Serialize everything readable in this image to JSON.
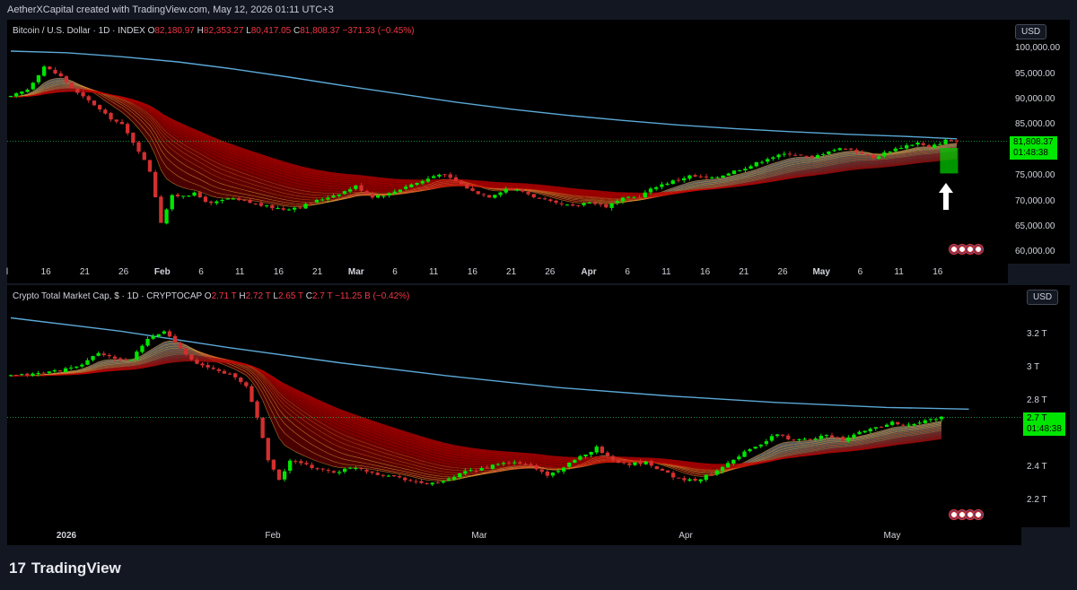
{
  "header": {
    "attribution": "AetherXCapital created with TradingView.com, May 12, 2026 01:11 UTC+3"
  },
  "footer": {
    "logo_mark": "17",
    "logo_text": "TradingView"
  },
  "colors": {
    "bull": "#00e600",
    "bear": "#d32f2f",
    "ribbon_red": "#b30000",
    "ribbon_gray": "#8a8a8a",
    "long_ma": "#5ba8d6",
    "price_tag": "#00e600",
    "background": "#000000"
  },
  "chart_data": [
    {
      "type": "candlestick",
      "legend": {
        "symbol": "Bitcoin / U.S. Dollar · 1D · INDEX",
        "open_key": "O",
        "open": "82,180.97",
        "high_key": "H",
        "high": "82,353.27",
        "low_key": "L",
        "low": "80,417.05",
        "close_key": "C",
        "close": "81,808.37",
        "change": "−371.33 (−0.45%)"
      },
      "currency": "USD",
      "last_price": "81,808.37",
      "countdown": "01:48:38",
      "y_ticks": [
        "100,000.00",
        "95,000.00",
        "90,000.00",
        "85,000.00",
        "75,000.00",
        "70,000.00",
        "65,000.00",
        "60,000.00"
      ],
      "ylim": [
        58500,
        102500
      ],
      "x_ticks": [
        "l",
        "16",
        "21",
        "26",
        "Feb",
        "6",
        "11",
        "16",
        "21",
        "Mar",
        "6",
        "11",
        "16",
        "21",
        "26",
        "Apr",
        "6",
        "11",
        "16",
        "21",
        "26",
        "May",
        "6",
        "11",
        "16"
      ],
      "long_ma": [
        [
          0,
          99500
        ],
        [
          10,
          99200
        ],
        [
          20,
          98400
        ],
        [
          30,
          97400
        ],
        [
          40,
          96000
        ],
        [
          50,
          94400
        ],
        [
          60,
          92700
        ],
        [
          70,
          91100
        ],
        [
          80,
          89500
        ],
        [
          90,
          88100
        ],
        [
          100,
          86900
        ],
        [
          110,
          85900
        ],
        [
          120,
          85000
        ],
        [
          130,
          84300
        ],
        [
          140,
          83700
        ],
        [
          150,
          83200
        ],
        [
          160,
          82800
        ],
        [
          170,
          82300
        ]
      ],
      "anchors": [
        [
          0,
          90500
        ],
        [
          3,
          92000
        ],
        [
          6,
          96500
        ],
        [
          9,
          94500
        ],
        [
          12,
          91200
        ],
        [
          15,
          89000
        ],
        [
          17,
          87000
        ],
        [
          20,
          85000
        ],
        [
          23,
          80000
        ],
        [
          25,
          76000
        ],
        [
          27,
          66000
        ],
        [
          29,
          71000
        ],
        [
          33,
          71500
        ],
        [
          36,
          69500
        ],
        [
          39,
          70500
        ],
        [
          42,
          70000
        ],
        [
          46,
          69000
        ],
        [
          49,
          68500
        ],
        [
          52,
          69000
        ],
        [
          56,
          70500
        ],
        [
          60,
          72000
        ],
        [
          62,
          73000
        ],
        [
          65,
          71000
        ],
        [
          68,
          71500
        ],
        [
          71,
          73000
        ],
        [
          74,
          74000
        ],
        [
          77,
          75500
        ],
        [
          80,
          74000
        ],
        [
          83,
          72000
        ],
        [
          86,
          71000
        ],
        [
          89,
          72500
        ],
        [
          92,
          72000
        ],
        [
          95,
          70500
        ],
        [
          98,
          69500
        ],
        [
          101,
          69000
        ],
        [
          104,
          70000
        ],
        [
          107,
          69000
        ],
        [
          110,
          70500
        ],
        [
          113,
          71000
        ],
        [
          116,
          73000
        ],
        [
          119,
          74000
        ],
        [
          122,
          75000
        ],
        [
          126,
          74500
        ],
        [
          130,
          76000
        ],
        [
          133,
          77000
        ],
        [
          136,
          78500
        ],
        [
          140,
          79500
        ],
        [
          144,
          78500
        ],
        [
          147,
          80000
        ],
        [
          150,
          80500
        ],
        [
          153,
          79500
        ],
        [
          155,
          78500
        ],
        [
          158,
          80000
        ],
        [
          161,
          81000
        ],
        [
          163,
          81500
        ],
        [
          165,
          80500
        ],
        [
          168,
          82000
        ],
        [
          170,
          81808
        ]
      ],
      "arrow_annotation": "up"
    },
    {
      "type": "candlestick",
      "legend": {
        "symbol": "Crypto Total Market Cap, $ · 1D · CRYPTOCAP",
        "open_key": "O",
        "open": "2.71 T",
        "high_key": "H",
        "high": "2.72 T",
        "low_key": "L",
        "low": "2.65 T",
        "close_key": "C",
        "close": "2.7 T",
        "change": "−11.25 B (−0.42%)"
      },
      "currency": "USD",
      "last_price": "2.7 T",
      "countdown": "01:48:38",
      "y_ticks": [
        "3.2 T",
        "3 T",
        "2.8 T",
        "2.4 T",
        "2.2 T"
      ],
      "ylim": [
        2.06,
        3.4
      ],
      "x_ticks": [
        "2026",
        "Feb",
        "Mar",
        "Apr",
        "May"
      ],
      "long_ma": [
        [
          0,
          3.3
        ],
        [
          20,
          3.22
        ],
        [
          40,
          3.12
        ],
        [
          60,
          3.03
        ],
        [
          80,
          2.95
        ],
        [
          100,
          2.88
        ],
        [
          120,
          2.83
        ],
        [
          140,
          2.79
        ],
        [
          160,
          2.76
        ],
        [
          175,
          2.75
        ]
      ],
      "anchors": [
        [
          0,
          2.95
        ],
        [
          4,
          2.96
        ],
        [
          8,
          2.98
        ],
        [
          12,
          3.0
        ],
        [
          16,
          3.09
        ],
        [
          19,
          3.05
        ],
        [
          22,
          3.05
        ],
        [
          25,
          3.17
        ],
        [
          28,
          3.22
        ],
        [
          31,
          3.12
        ],
        [
          34,
          3.02
        ],
        [
          37,
          2.99
        ],
        [
          40,
          2.96
        ],
        [
          43,
          2.89
        ],
        [
          45,
          2.7
        ],
        [
          47,
          2.45
        ],
        [
          49,
          2.32
        ],
        [
          51,
          2.44
        ],
        [
          55,
          2.4
        ],
        [
          59,
          2.37
        ],
        [
          63,
          2.4
        ],
        [
          67,
          2.36
        ],
        [
          71,
          2.34
        ],
        [
          75,
          2.3
        ],
        [
          79,
          2.31
        ],
        [
          83,
          2.37
        ],
        [
          87,
          2.4
        ],
        [
          91,
          2.43
        ],
        [
          95,
          2.41
        ],
        [
          98,
          2.35
        ],
        [
          101,
          2.4
        ],
        [
          104,
          2.46
        ],
        [
          107,
          2.52
        ],
        [
          110,
          2.44
        ],
        [
          113,
          2.42
        ],
        [
          116,
          2.43
        ],
        [
          119,
          2.38
        ],
        [
          122,
          2.33
        ],
        [
          125,
          2.32
        ],
        [
          128,
          2.36
        ],
        [
          131,
          2.43
        ],
        [
          134,
          2.49
        ],
        [
          137,
          2.54
        ],
        [
          140,
          2.6
        ],
        [
          143,
          2.56
        ],
        [
          146,
          2.57
        ],
        [
          149,
          2.6
        ],
        [
          152,
          2.56
        ],
        [
          155,
          2.61
        ],
        [
          158,
          2.64
        ],
        [
          161,
          2.67
        ],
        [
          164,
          2.65
        ],
        [
          167,
          2.68
        ],
        [
          170,
          2.7
        ]
      ]
    }
  ]
}
